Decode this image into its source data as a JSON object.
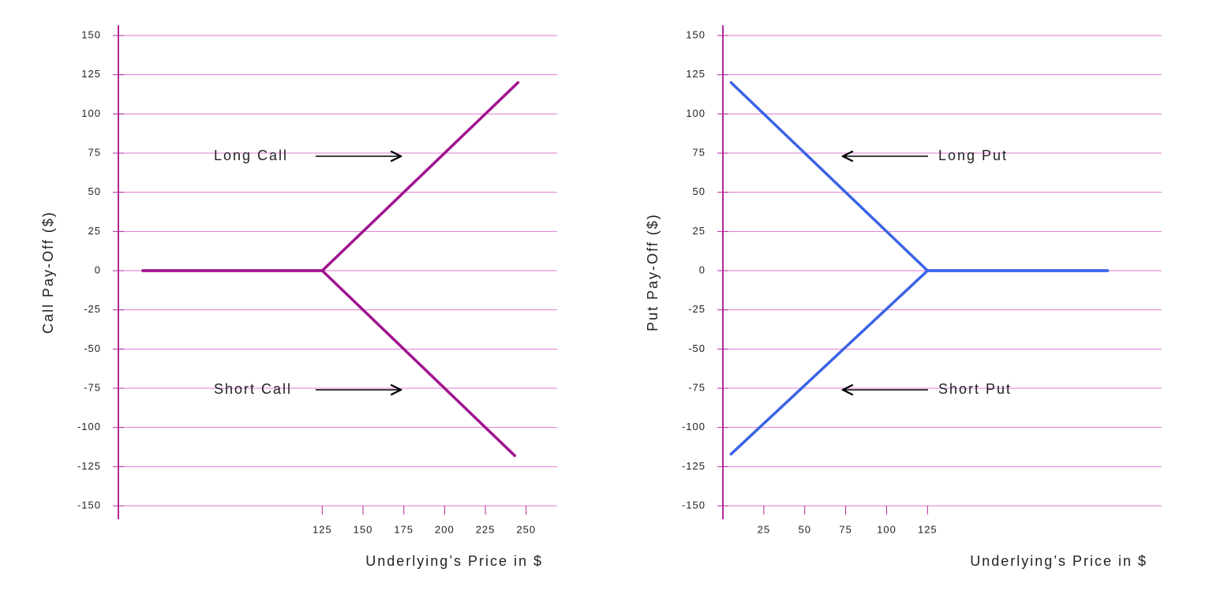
{
  "chart_data": [
    {
      "type": "line",
      "ylabel": "Call Pay-Off ($)",
      "xlabel": "Underlying’s Price in $",
      "xlim": [
        0,
        269
      ],
      "ylim": [
        -150,
        150
      ],
      "xticks": [
        125,
        150,
        175,
        200,
        225,
        250
      ],
      "yticks": [
        150,
        125,
        100,
        75,
        50,
        25,
        0,
        -25,
        -50,
        -75,
        -100,
        -125,
        -150
      ],
      "grid": true,
      "series": [
        {
          "name": "Long Call",
          "color": "#a1138f",
          "x": [
            15,
            125,
            245
          ],
          "values": [
            0,
            0,
            120
          ]
        },
        {
          "name": "Short Call",
          "color": "#a1138f",
          "x": [
            15,
            125,
            243
          ],
          "values": [
            0,
            0,
            -118
          ]
        }
      ]
    },
    {
      "type": "line",
      "ylabel": "Put Pay-Off ($)",
      "xlabel": "Underlying’s Price in $",
      "xlim": [
        0,
        268
      ],
      "ylim": [
        -150,
        150
      ],
      "xticks": [
        25,
        50,
        75,
        100,
        125
      ],
      "yticks": [
        150,
        125,
        100,
        75,
        50,
        25,
        0,
        -25,
        -50,
        -75,
        -100,
        -125,
        -150
      ],
      "grid": true,
      "series": [
        {
          "name": "Long Put",
          "color": "#3b63e6",
          "x": [
            5,
            125,
            235
          ],
          "values": [
            120,
            0,
            0
          ]
        },
        {
          "name": "Short Put",
          "color": "#3b63e6",
          "x": [
            5,
            125,
            235
          ],
          "values": [
            -117,
            0,
            0
          ]
        }
      ]
    }
  ]
}
